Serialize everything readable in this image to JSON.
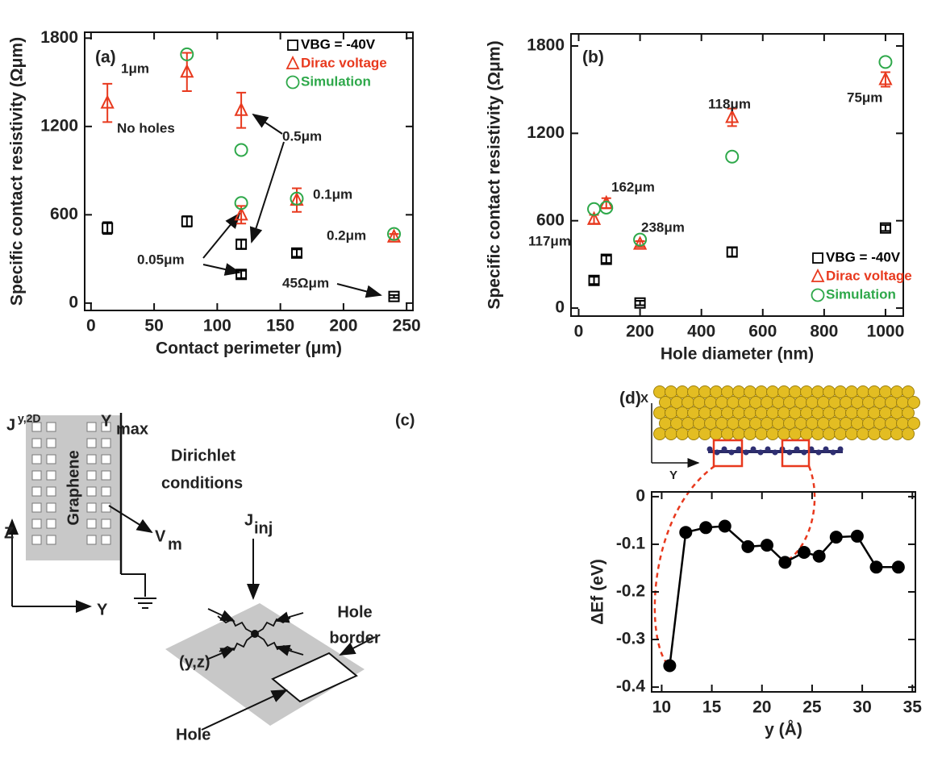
{
  "chart_data": [
    {
      "type": "scatter",
      "label": "(a)",
      "xlabel": "Contact perimeter (μm)",
      "ylabel": "Specific contact resistivity (Ωμm)",
      "xlim": [
        -5,
        255
      ],
      "ylim": [
        -50,
        1840
      ],
      "xticks": [
        0,
        50,
        100,
        150,
        200,
        250
      ],
      "yticks": [
        0,
        600,
        1200,
        1800
      ],
      "legend": "upper right",
      "series": [
        {
          "name": "VBG = -40V",
          "color": "#000000",
          "marker": "square",
          "x": [
            13,
            76,
            119,
            119,
            163,
            240
          ],
          "values": [
            510,
            555,
            400,
            195,
            340,
            45
          ],
          "errors": [
            40,
            35,
            30,
            25,
            25,
            10
          ]
        },
        {
          "name": "Dirac voltage",
          "color": "#e8391e",
          "marker": "triangle",
          "x": [
            13,
            76,
            119,
            119,
            163,
            240
          ],
          "values": [
            1360,
            1570,
            1310,
            600,
            700,
            450
          ],
          "errors": [
            130,
            130,
            120,
            60,
            80,
            20
          ]
        },
        {
          "name": "Simulation",
          "color": "#2ea84a",
          "marker": "circle",
          "x": [
            76,
            119,
            119,
            163,
            240
          ],
          "values": [
            1690,
            1040,
            680,
            710,
            470
          ]
        }
      ],
      "annotations": [
        "1μm",
        "No holes",
        "0.5μm",
        "0.1μm",
        "0.2μm",
        "0.05μm",
        "45Ωμm"
      ]
    },
    {
      "type": "scatter",
      "label": "(b)",
      "xlabel": "Hole diameter (nm)",
      "ylabel": "Specific contact resistivity (Ωμm)",
      "xlim": [
        -25,
        1058
      ],
      "ylim": [
        -55,
        1883
      ],
      "xticks": [
        0,
        200,
        400,
        600,
        800,
        1000
      ],
      "yticks": [
        0,
        600,
        1200,
        1800
      ],
      "legend": "lower right",
      "series": [
        {
          "name": "VBG = -40V",
          "color": "#000000",
          "marker": "square",
          "x": [
            50,
            90,
            200,
            500,
            1000
          ],
          "values": [
            190,
            335,
            35,
            385,
            550
          ],
          "errors": [
            25,
            25,
            15,
            30,
            20
          ]
        },
        {
          "name": "Dirac voltage",
          "color": "#e8391e",
          "marker": "triangle",
          "x": [
            50,
            90,
            200,
            500,
            1000
          ],
          "values": [
            610,
            720,
            440,
            1310,
            1570
          ],
          "errors": [
            30,
            35,
            20,
            60,
            50
          ]
        },
        {
          "name": "Simulation",
          "color": "#2ea84a",
          "marker": "circle",
          "x": [
            50,
            90,
            200,
            500,
            1000
          ],
          "values": [
            680,
            690,
            470,
            1040,
            1690
          ]
        }
      ],
      "annotations": [
        "117μm",
        "162μm",
        "238μm",
        "118μm",
        "75μm"
      ]
    },
    {
      "type": "line",
      "label": "(d)",
      "xlabel": "y (Å)",
      "ylabel": "ΔEf (eV)",
      "xlim": [
        9,
        35.3
      ],
      "ylim": [
        -0.41,
        0.01
      ],
      "xticks": [
        10,
        15,
        20,
        25,
        30,
        35
      ],
      "yticks": [
        0,
        -0.1,
        -0.2,
        -0.3,
        -0.4
      ],
      "series": [
        {
          "color": "#000000",
          "marker": "circle",
          "x": [
            10.8,
            12.4,
            14.4,
            16.3,
            18.6,
            20.5,
            22.3,
            24.2,
            25.7,
            27.4,
            29.5,
            31.4,
            33.6
          ],
          "values": [
            -0.355,
            -0.075,
            -0.065,
            -0.062,
            -0.105,
            -0.102,
            -0.138,
            -0.117,
            -0.125,
            -0.085,
            -0.083,
            -0.148,
            -0.148
          ]
        }
      ]
    }
  ],
  "structure_d": {
    "x_axis": "X",
    "y_axis": "Y"
  },
  "diagram": {
    "label": "(c)",
    "j_main": "J",
    "j_sub": "y,2D",
    "ymax_main": "Y",
    "ymax_sub": "max",
    "dirichlet": "Dirichlet",
    "conditions": "conditions",
    "graphene": "Graphene",
    "z_axis": "Z",
    "y_axis": "Y",
    "vm_main": "V",
    "vm_sub": "m",
    "jinj_main": "J",
    "jinj_sub": "inj",
    "hole_border_1": "Hole",
    "hole_border_2": "border",
    "yz": "(y,z)",
    "hole": "Hole"
  }
}
